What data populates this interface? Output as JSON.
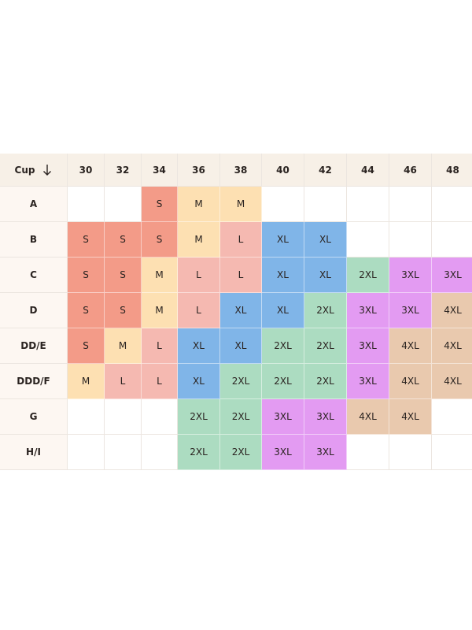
{
  "table": {
    "header": {
      "label": "Cup",
      "columns": [
        "30",
        "32",
        "34",
        "36",
        "38",
        "40",
        "42",
        "44",
        "46",
        "48"
      ]
    },
    "rows": [
      {
        "cup": "A",
        "sizes": [
          null,
          null,
          "S",
          "M",
          "M",
          null,
          null,
          null,
          null,
          null
        ]
      },
      {
        "cup": "B",
        "sizes": [
          "S",
          "S",
          "S",
          "M",
          "L",
          "XL",
          "XL",
          null,
          null,
          null
        ]
      },
      {
        "cup": "C",
        "sizes": [
          "S",
          "S",
          "M",
          "L",
          "L",
          "XL",
          "XL",
          "2XL",
          "3XL",
          "3XL"
        ]
      },
      {
        "cup": "D",
        "sizes": [
          "S",
          "S",
          "M",
          "L",
          "XL",
          "XL",
          "2XL",
          "3XL",
          "3XL",
          "4XL"
        ]
      },
      {
        "cup": "DD/E",
        "sizes": [
          "S",
          "M",
          "L",
          "XL",
          "XL",
          "2XL",
          "2XL",
          "3XL",
          "4XL",
          "4XL"
        ]
      },
      {
        "cup": "DDD/F",
        "sizes": [
          "M",
          "L",
          "L",
          "XL",
          "2XL",
          "2XL",
          "2XL",
          "3XL",
          "4XL",
          "4XL"
        ]
      },
      {
        "cup": "G",
        "sizes": [
          null,
          null,
          null,
          "2XL",
          "2XL",
          "3XL",
          "3XL",
          "4XL",
          "4XL",
          null
        ]
      },
      {
        "cup": "H/I",
        "sizes": [
          null,
          null,
          null,
          "2XL",
          "2XL",
          "3XL",
          "3XL",
          null,
          null,
          null
        ]
      }
    ],
    "size_colors": {
      "S": "#f39b88",
      "M": "#fde0b2",
      "L": "#f5b9b1",
      "XL": "#80b5e8",
      "2XL": "#acdcc1",
      "3XL": "#e39bf2",
      "4XL": "#e9c9ae"
    }
  }
}
